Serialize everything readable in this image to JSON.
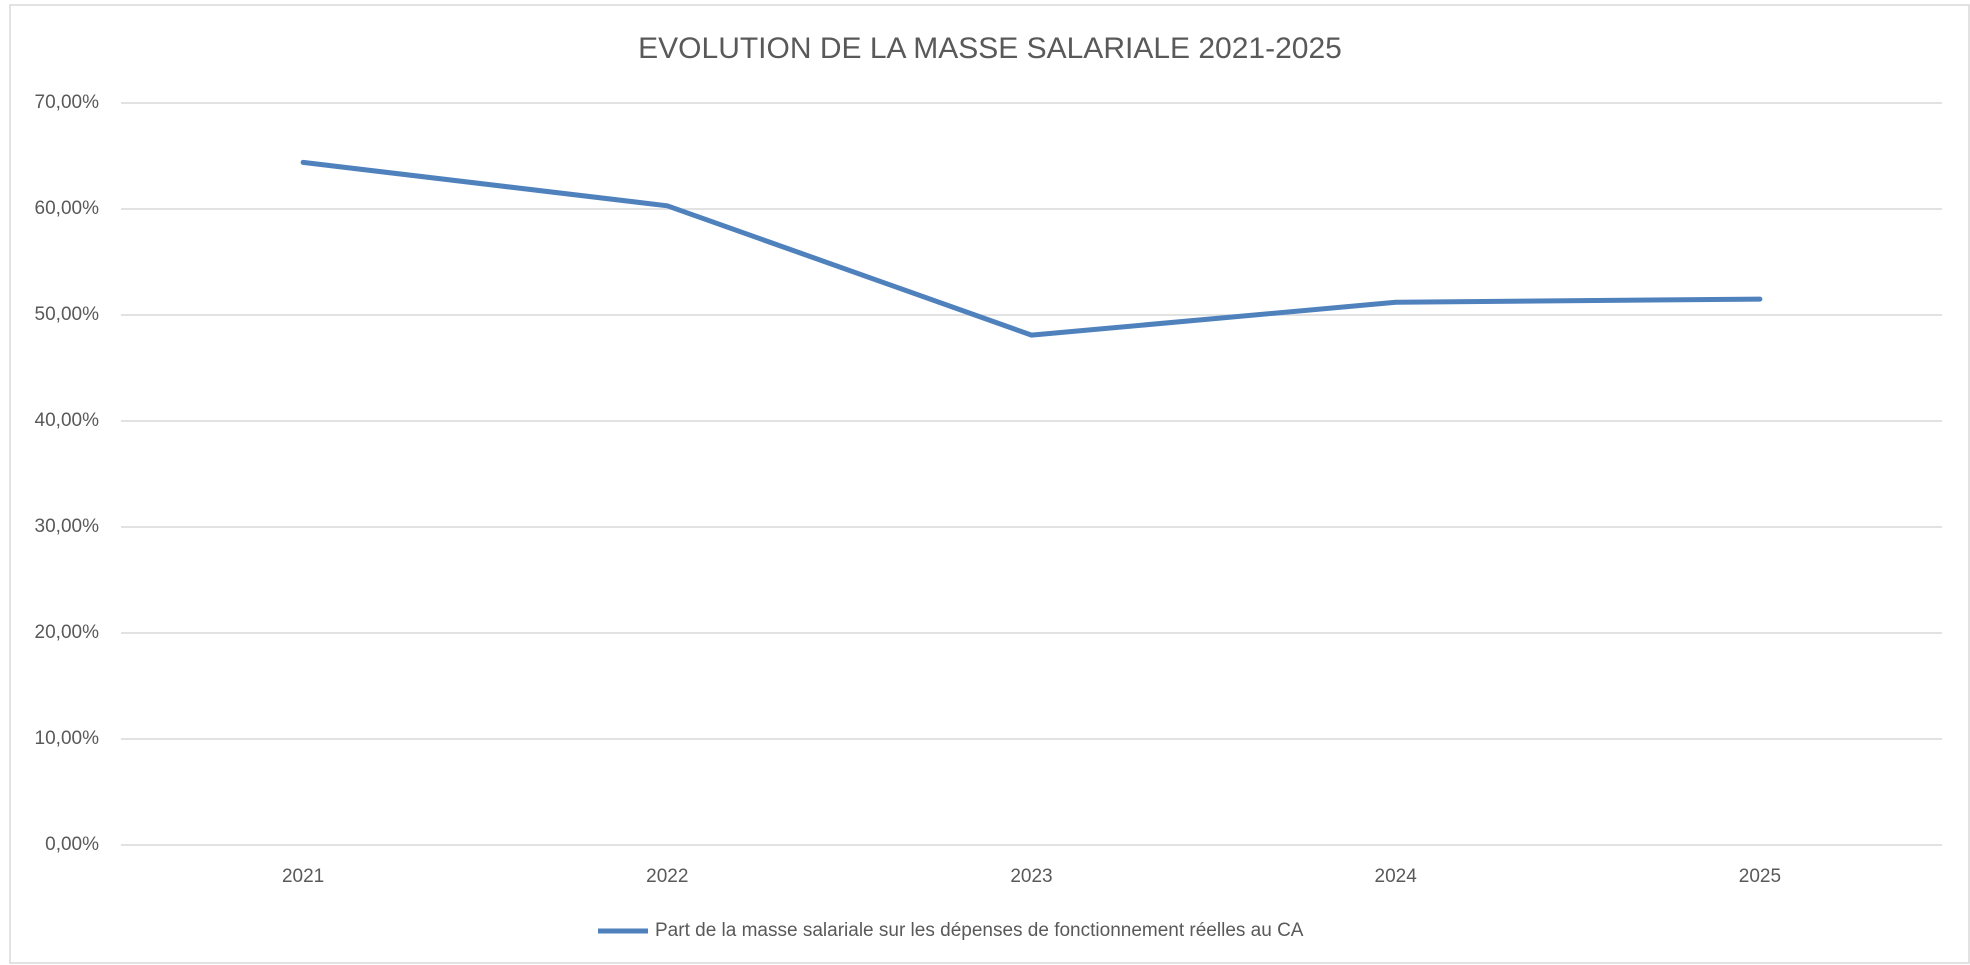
{
  "chart_data": {
    "type": "line",
    "title": "EVOLUTION DE LA MASSE SALARIALE 2021-2025",
    "categories": [
      "2021",
      "2022",
      "2023",
      "2024",
      "2025"
    ],
    "series": [
      {
        "name": "Part de la masse salariale sur les dépenses de fonctionnement réelles au CA",
        "color": "#4f81bd",
        "values": [
          64.4,
          60.3,
          48.1,
          51.2,
          51.5
        ]
      }
    ],
    "ylim": [
      0,
      70
    ],
    "yticks": [
      {
        "value": 0,
        "label": "0,00%"
      },
      {
        "value": 10,
        "label": "10,00%"
      },
      {
        "value": 20,
        "label": "20,00%"
      },
      {
        "value": 30,
        "label": "30,00%"
      },
      {
        "value": 40,
        "label": "40,00%"
      },
      {
        "value": 50,
        "label": "50,00%"
      },
      {
        "value": 60,
        "label": "60,00%"
      },
      {
        "value": 70,
        "label": "70,00%"
      }
    ],
    "grid": true,
    "legend": "bottom"
  }
}
